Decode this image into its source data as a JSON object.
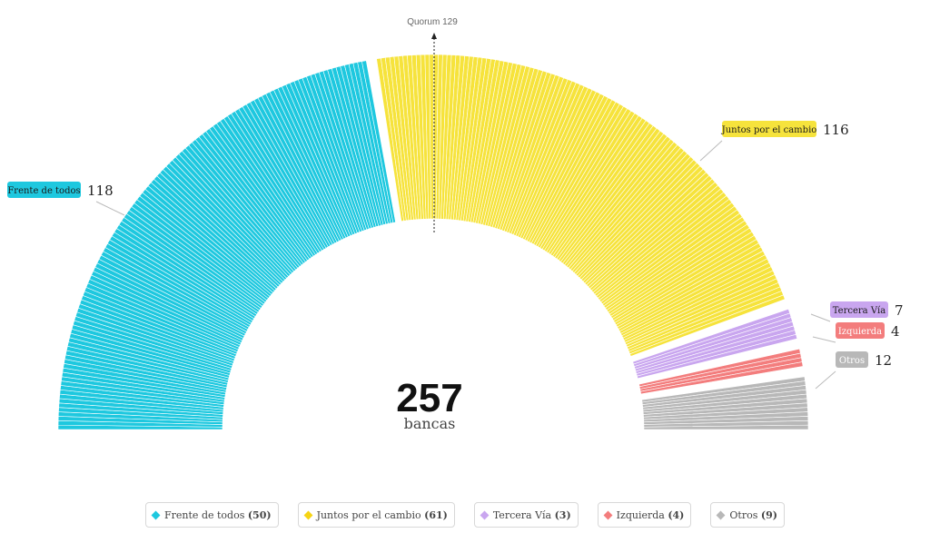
{
  "chart_data": {
    "type": "parliament",
    "total": 257,
    "total_label": "bancas",
    "quorum": 129,
    "quorum_label": "Quorum 129",
    "series": [
      {
        "name": "Frente de todos",
        "seats": 118,
        "color": "#1ec8df",
        "label_color": "#1ec8df",
        "label_text_color": "#1a1a1a"
      },
      {
        "name": "Juntos por el cambio",
        "seats": 116,
        "color": "#f6e33c",
        "label_color": "#f6e33c",
        "label_text_color": "#1a1a1a"
      },
      {
        "name": "Tercera Vía",
        "seats": 7,
        "color": "#c9a6ef",
        "label_color": "#c9a6ef",
        "label_text_color": "#1a1a1a"
      },
      {
        "name": "Izquierda",
        "seats": 4,
        "color": "#f37d7d",
        "label_color": "#f37d7d",
        "label_text_color": "#ffffff"
      },
      {
        "name": "Otros",
        "seats": 12,
        "color": "#b8b8b8",
        "label_color": "#b8b8b8",
        "label_text_color": "#ffffff"
      }
    ],
    "legend": [
      {
        "name": "Frente de todos",
        "count": "(50)",
        "color": "#1ec8df"
      },
      {
        "name": "Juntos por el cambio",
        "count": "(61)",
        "color": "#f6d414"
      },
      {
        "name": "Tercera Vía",
        "count": "(3)",
        "color": "#c9a6ef"
      },
      {
        "name": "Izquierda",
        "count": "(4)",
        "color": "#f37d7d"
      },
      {
        "name": "Otros",
        "count": "(9)",
        "color": "#b8b8b8"
      }
    ]
  }
}
